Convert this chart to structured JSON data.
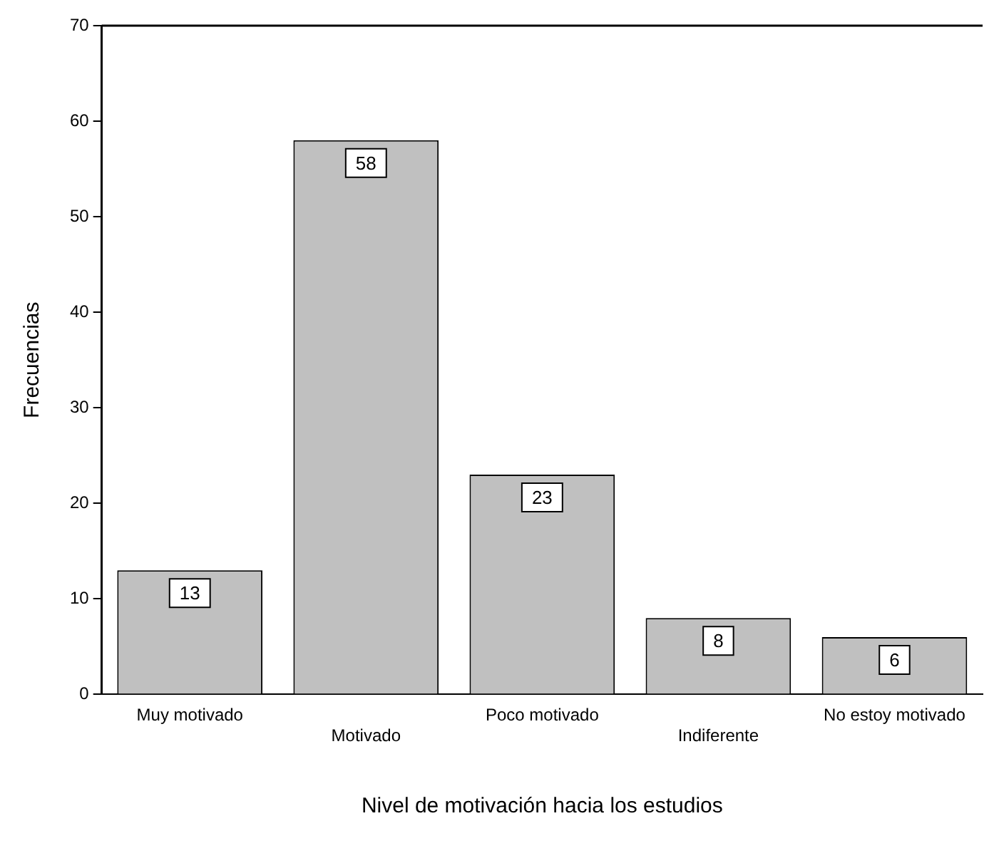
{
  "chart_data": {
    "type": "bar",
    "xlabel": "Nivel de motivación hacia los estudios",
    "ylabel": "Frecuencias",
    "categories": [
      "Muy motivado",
      "Motivado",
      "Poco motivado",
      "Indiferente",
      "No estoy motivado"
    ],
    "values": [
      13,
      58,
      23,
      8,
      6
    ],
    "color": "#c0c0c0",
    "ylim": [
      0,
      70
    ],
    "yticks": [
      0,
      10,
      20,
      30,
      40,
      50,
      60,
      70
    ],
    "grid": false,
    "legend": false,
    "data_labels": true
  }
}
